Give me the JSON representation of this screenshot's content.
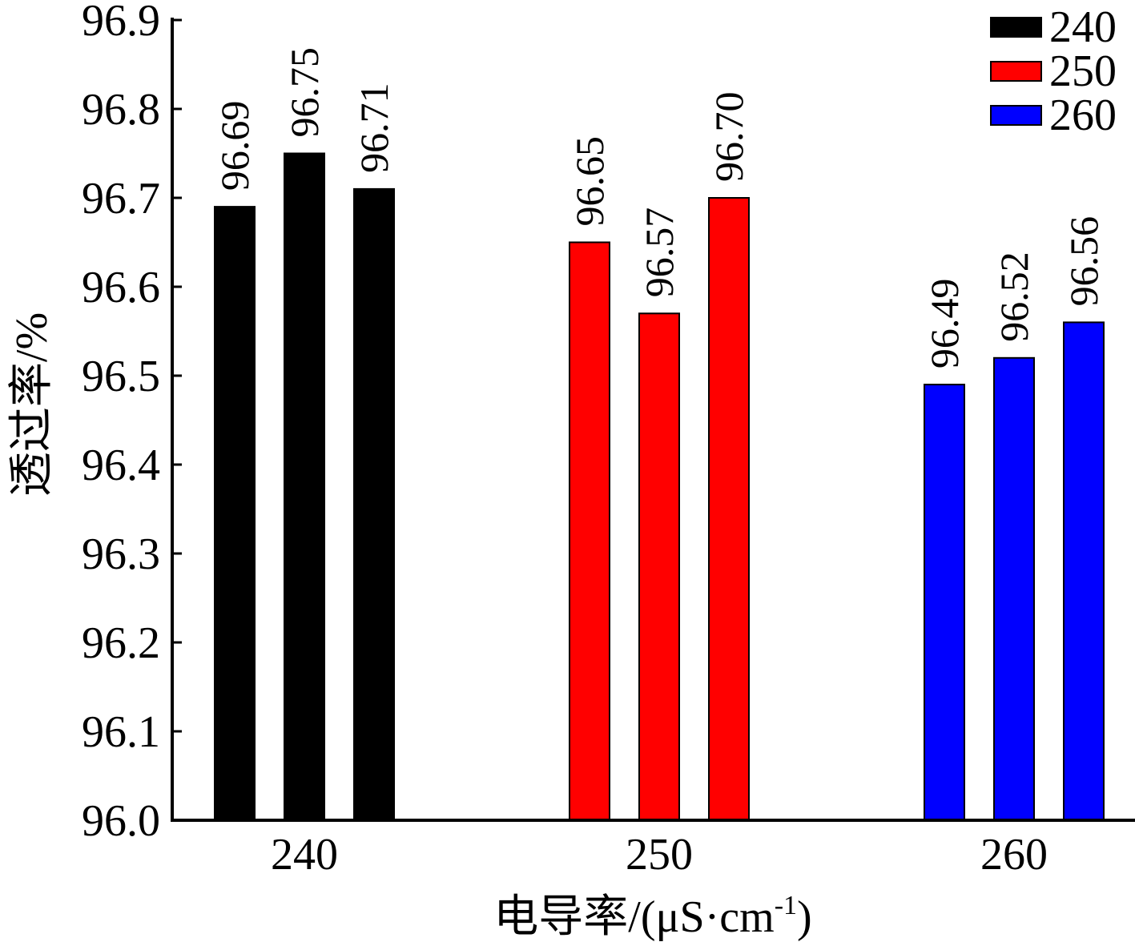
{
  "chart_data": {
    "type": "bar",
    "title": "",
    "xlabel": "电导率/(μS·cm",
    "xlabel_sup": "-1",
    "xlabel_close": ")",
    "ylabel": "透过率/%",
    "ylim": [
      96.0,
      96.9
    ],
    "yticks": [
      "96.0",
      "96.1",
      "96.2",
      "96.3",
      "96.4",
      "96.5",
      "96.6",
      "96.7",
      "96.8",
      "96.9"
    ],
    "ytick_values": [
      96.0,
      96.1,
      96.2,
      96.3,
      96.4,
      96.5,
      96.6,
      96.7,
      96.8,
      96.9
    ],
    "categories": [
      "240",
      "250",
      "260"
    ],
    "legend_position": "top-right",
    "groups": [
      {
        "category": "240",
        "color": "#000000",
        "values": [
          96.69,
          96.75,
          96.71
        ],
        "labels": [
          "96.69",
          "96.75",
          "96.71"
        ]
      },
      {
        "category": "250",
        "color": "#ff0000",
        "values": [
          96.65,
          96.57,
          96.7
        ],
        "labels": [
          "96.65",
          "96.57",
          "96.70"
        ]
      },
      {
        "category": "260",
        "color": "#0000ff",
        "values": [
          96.49,
          96.52,
          96.56
        ],
        "labels": [
          "96.49",
          "96.52",
          "96.56"
        ]
      }
    ],
    "legend": [
      {
        "name": "240",
        "color": "#000000"
      },
      {
        "name": "250",
        "color": "#ff0000"
      },
      {
        "name": "260",
        "color": "#0000ff"
      }
    ]
  }
}
